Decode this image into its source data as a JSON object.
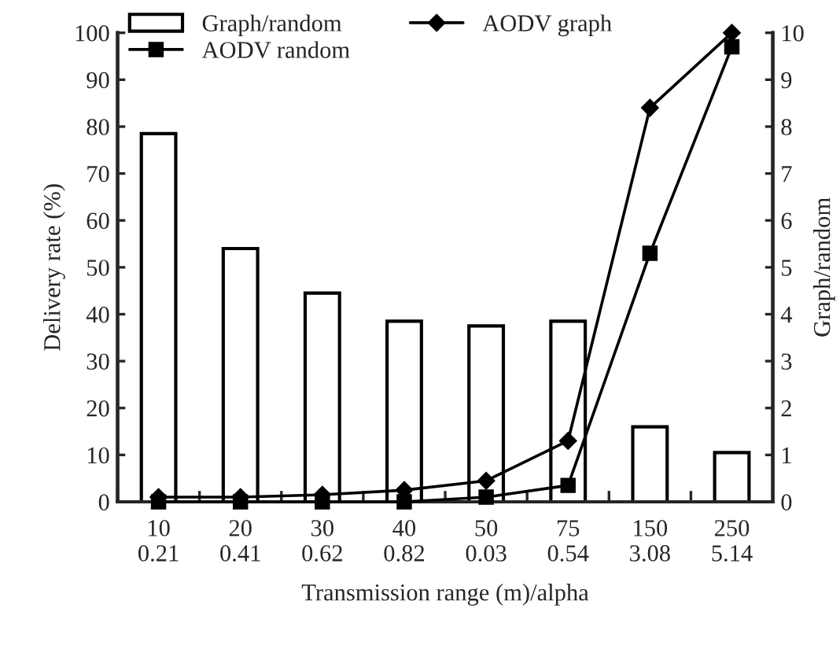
{
  "chart_data": {
    "type": "bar",
    "xlabel": "Transmission range (m)/alpha",
    "ylabel": "Delivery rate (%)",
    "y2label": "Graph/random",
    "categories": [
      "10\n0.21",
      "20\n0.41",
      "30\n0.62",
      "40\n0.82",
      "50\n0.03",
      "75\n0.54",
      "150\n3.08",
      "250\n5.14"
    ],
    "series": [
      {
        "name": "Graph/random",
        "axis": "y2",
        "color": "#ffffff",
        "values": [
          7.85,
          5.4,
          4.45,
          3.85,
          3.75,
          3.85,
          1.6,
          1.05
        ]
      },
      {
        "name": "AODV graph",
        "type": "line",
        "marker": "diamond",
        "color": "#000000",
        "values": [
          1,
          1,
          1.5,
          2.5,
          4.5,
          13,
          84,
          100
        ]
      },
      {
        "name": "AODV random",
        "type": "line",
        "marker": "square",
        "color": "#000000",
        "values": [
          0,
          0,
          0,
          0,
          1,
          3.5,
          53,
          97
        ]
      }
    ],
    "ylim": [
      0,
      100
    ],
    "yticks": [
      0,
      10,
      20,
      30,
      40,
      50,
      60,
      70,
      80,
      90,
      100
    ],
    "y2lim": [
      0,
      10
    ],
    "y2ticks": [
      0,
      1,
      2,
      3,
      4,
      5,
      6,
      7,
      8,
      9,
      10
    ],
    "legend": "top left",
    "grid": false
  }
}
